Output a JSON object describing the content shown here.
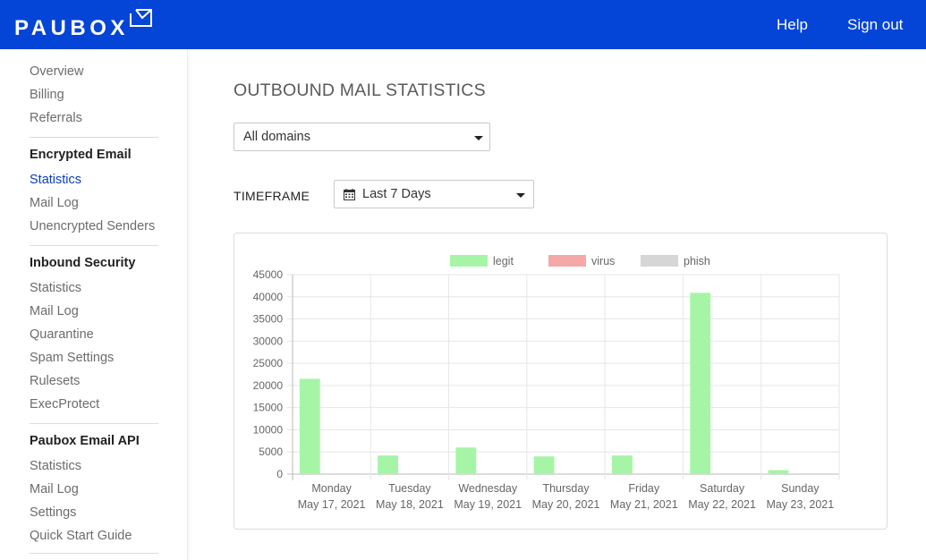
{
  "header": {
    "logo_text": "PAUBOX",
    "logo_icon": "mail-icon",
    "help_label": "Help",
    "signout_label": "Sign out",
    "bg_color": "#0444d6"
  },
  "sidebar": {
    "top_items": [
      {
        "label": "Overview"
      },
      {
        "label": "Billing"
      },
      {
        "label": "Referrals"
      }
    ],
    "sections": [
      {
        "heading": "Encrypted Email",
        "items": [
          {
            "label": "Statistics",
            "active": true
          },
          {
            "label": "Mail Log"
          },
          {
            "label": "Unencrypted Senders"
          }
        ]
      },
      {
        "heading": "Inbound Security",
        "items": [
          {
            "label": "Statistics"
          },
          {
            "label": "Mail Log"
          },
          {
            "label": "Quarantine"
          },
          {
            "label": "Spam Settings"
          },
          {
            "label": "Rulesets"
          },
          {
            "label": "ExecProtect"
          }
        ]
      },
      {
        "heading": "Paubox Email API",
        "items": [
          {
            "label": "Statistics"
          },
          {
            "label": "Mail Log"
          },
          {
            "label": "Settings"
          },
          {
            "label": "Quick Start Guide"
          }
        ]
      }
    ]
  },
  "main": {
    "title": "OUTBOUND MAIL STATISTICS",
    "domain_select": {
      "value": "All domains"
    },
    "timeframe": {
      "label": "TIMEFRAME",
      "value": "Last 7 Days",
      "icon": "calendar-icon"
    }
  },
  "chart_data": {
    "type": "bar",
    "categories": [
      [
        "Monday",
        "May 17, 2021"
      ],
      [
        "Tuesday",
        "May 18, 2021"
      ],
      [
        "Wednesday",
        "May 19, 2021"
      ],
      [
        "Thursday",
        "May 20, 2021"
      ],
      [
        "Friday",
        "May 21, 2021"
      ],
      [
        "Saturday",
        "May 22, 2021"
      ],
      [
        "Sunday",
        "May 23, 2021"
      ]
    ],
    "series": [
      {
        "name": "legit",
        "color": "#a6f5a6",
        "values": [
          21500,
          4200,
          6000,
          4000,
          4200,
          40900,
          900
        ]
      },
      {
        "name": "virus",
        "color": "#f5a8a8",
        "values": [
          0,
          0,
          0,
          0,
          0,
          0,
          0
        ]
      },
      {
        "name": "phish",
        "color": "#d6d6d6",
        "values": [
          0,
          0,
          0,
          0,
          0,
          0,
          0
        ]
      }
    ],
    "ylim": [
      0,
      45000
    ],
    "y_ticks": [
      0,
      5000,
      10000,
      15000,
      20000,
      25000,
      30000,
      35000,
      40000,
      45000
    ],
    "grid": true,
    "legend_position": "top"
  }
}
